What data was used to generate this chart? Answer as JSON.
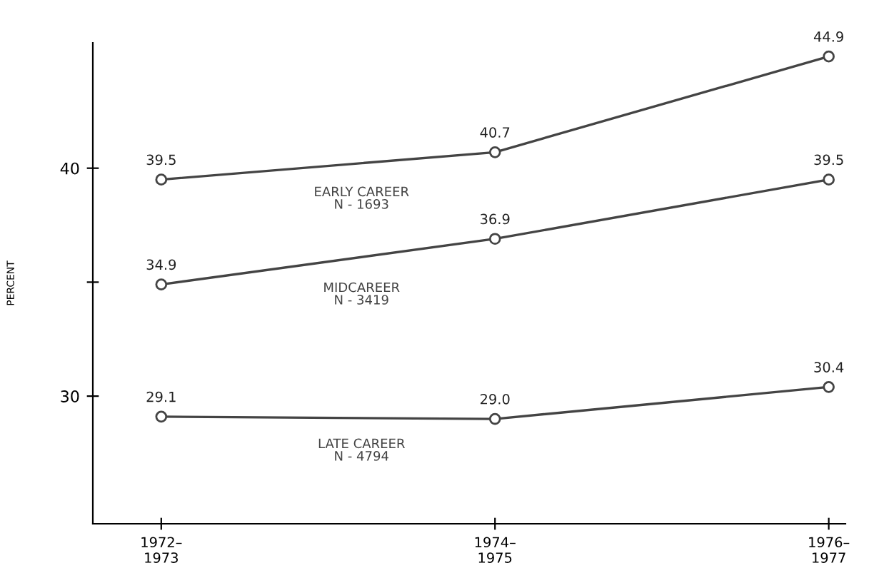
{
  "chart_data": {
    "type": "line",
    "ylabel": "PERCENT",
    "categories": [
      "1972–\n1973",
      "1974–\n1975",
      "1976–\n1977"
    ],
    "series": [
      {
        "name": "EARLY CAREER\nN - 1693",
        "color": "#444444",
        "values": [
          39.5,
          40.7,
          44.9
        ],
        "value_labels": [
          "39.5",
          "40.7",
          "44.9"
        ]
      },
      {
        "name": "MIDCAREER\nN - 3419",
        "color": "#444444",
        "values": [
          34.9,
          36.9,
          39.5
        ],
        "value_labels": [
          "34.9",
          "36.9",
          "39.5"
        ]
      },
      {
        "name": "LATE CAREER\nN - 4794",
        "color": "#444444",
        "values": [
          29.1,
          29.0,
          30.4
        ],
        "value_labels": [
          "29.1",
          "29.0",
          "30.4"
        ]
      }
    ],
    "ylim": [
      24.4,
      45.5
    ],
    "yticks": [
      30,
      {
        "value": 35,
        "label": null
      },
      40
    ],
    "marker": "circle",
    "line_style": "solid",
    "grid": false,
    "legend": false
  }
}
